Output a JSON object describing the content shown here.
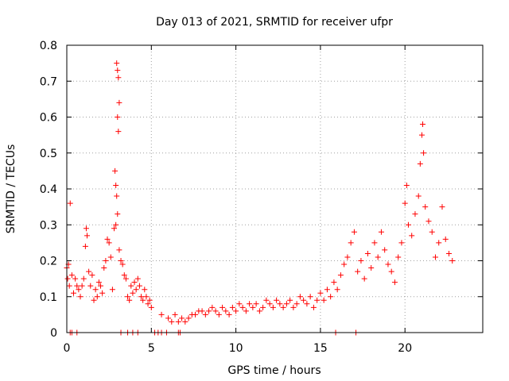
{
  "chart_data": {
    "type": "scatter",
    "title": "Day 013 of 2021, SRMTID for receiver ufpr",
    "xlabel": "GPS time / hours",
    "ylabel": "SRMTID / TECUs",
    "xlim": [
      0,
      24.6
    ],
    "ylim": [
      0,
      0.8
    ],
    "xticks": [
      0,
      5,
      10,
      15,
      20
    ],
    "xtick_labels": [
      "0",
      "5",
      "10",
      "15",
      "20"
    ],
    "yticks": [
      0,
      0.1,
      0.2,
      0.3,
      0.4,
      0.5,
      0.6,
      0.7,
      0.8
    ],
    "ytick_labels": [
      "0",
      "0.1",
      "0.2",
      "0.3",
      "0.4",
      "0.5",
      "0.6",
      "0.7",
      "0.8"
    ],
    "grid": true,
    "marker": "+",
    "color": "#ff0000",
    "series": [
      {
        "name": "SRMTID",
        "points": [
          [
            0.0,
            0.18
          ],
          [
            0.05,
            0.15
          ],
          [
            0.1,
            0.19
          ],
          [
            0.15,
            0.13
          ],
          [
            0.2,
            0.36
          ],
          [
            0.3,
            0.16
          ],
          [
            0.4,
            0.11
          ],
          [
            0.5,
            0.15
          ],
          [
            0.6,
            0.13
          ],
          [
            0.7,
            0.12
          ],
          [
            0.8,
            0.1
          ],
          [
            0.9,
            0.13
          ],
          [
            1.0,
            0.15
          ],
          [
            1.1,
            0.24
          ],
          [
            1.15,
            0.29
          ],
          [
            1.2,
            0.27
          ],
          [
            1.3,
            0.17
          ],
          [
            1.4,
            0.13
          ],
          [
            1.5,
            0.16
          ],
          [
            1.6,
            0.09
          ],
          [
            1.7,
            0.12
          ],
          [
            1.8,
            0.1
          ],
          [
            1.9,
            0.14
          ],
          [
            2.0,
            0.13
          ],
          [
            2.1,
            0.11
          ],
          [
            2.2,
            0.18
          ],
          [
            2.3,
            0.2
          ],
          [
            2.4,
            0.26
          ],
          [
            2.5,
            0.25
          ],
          [
            2.6,
            0.21
          ],
          [
            2.7,
            0.12
          ],
          [
            2.8,
            0.29
          ],
          [
            2.85,
            0.45
          ],
          [
            2.9,
            0.3
          ],
          [
            2.95,
            0.75
          ],
          [
            3.0,
            0.73
          ],
          [
            3.05,
            0.71
          ],
          [
            3.1,
            0.64
          ],
          [
            3.0,
            0.6
          ],
          [
            3.05,
            0.56
          ],
          [
            2.9,
            0.41
          ],
          [
            2.95,
            0.38
          ],
          [
            3.0,
            0.33
          ],
          [
            3.1,
            0.23
          ],
          [
            3.2,
            0.2
          ],
          [
            3.3,
            0.19
          ],
          [
            3.4,
            0.16
          ],
          [
            3.5,
            0.15
          ],
          [
            3.6,
            0.1
          ],
          [
            3.7,
            0.09
          ],
          [
            3.8,
            0.13
          ],
          [
            3.9,
            0.11
          ],
          [
            4.0,
            0.14
          ],
          [
            4.1,
            0.12
          ],
          [
            4.2,
            0.15
          ],
          [
            4.3,
            0.13
          ],
          [
            4.4,
            0.1
          ],
          [
            4.5,
            0.09
          ],
          [
            4.6,
            0.12
          ],
          [
            4.7,
            0.1
          ],
          [
            4.8,
            0.08
          ],
          [
            4.9,
            0.09
          ],
          [
            5.0,
            0.07
          ],
          [
            0.2,
            0.0
          ],
          [
            0.3,
            0.0
          ],
          [
            0.6,
            0.0
          ],
          [
            3.2,
            0.0
          ],
          [
            3.6,
            0.0
          ],
          [
            3.9,
            0.0
          ],
          [
            4.2,
            0.0
          ],
          [
            5.2,
            0.0
          ],
          [
            5.4,
            0.0
          ],
          [
            5.6,
            0.0
          ],
          [
            5.9,
            0.0
          ],
          [
            6.6,
            0.0
          ],
          [
            6.7,
            0.0
          ],
          [
            15.9,
            0.0
          ],
          [
            17.1,
            0.0
          ],
          [
            5.6,
            0.05
          ],
          [
            6.0,
            0.04
          ],
          [
            6.2,
            0.03
          ],
          [
            6.4,
            0.05
          ],
          [
            6.6,
            0.03
          ],
          [
            6.8,
            0.04
          ],
          [
            7.0,
            0.03
          ],
          [
            7.2,
            0.04
          ],
          [
            7.4,
            0.05
          ],
          [
            7.6,
            0.05
          ],
          [
            7.8,
            0.06
          ],
          [
            8.0,
            0.06
          ],
          [
            8.2,
            0.05
          ],
          [
            8.4,
            0.06
          ],
          [
            8.6,
            0.07
          ],
          [
            8.8,
            0.06
          ],
          [
            9.0,
            0.05
          ],
          [
            9.2,
            0.07
          ],
          [
            9.4,
            0.06
          ],
          [
            9.6,
            0.05
          ],
          [
            9.8,
            0.07
          ],
          [
            10.0,
            0.06
          ],
          [
            10.2,
            0.08
          ],
          [
            10.4,
            0.07
          ],
          [
            10.6,
            0.06
          ],
          [
            10.8,
            0.08
          ],
          [
            11.0,
            0.07
          ],
          [
            11.2,
            0.08
          ],
          [
            11.4,
            0.06
          ],
          [
            11.6,
            0.07
          ],
          [
            11.8,
            0.09
          ],
          [
            12.0,
            0.08
          ],
          [
            12.2,
            0.07
          ],
          [
            12.4,
            0.09
          ],
          [
            12.6,
            0.08
          ],
          [
            12.8,
            0.07
          ],
          [
            13.0,
            0.08
          ],
          [
            13.2,
            0.09
          ],
          [
            13.4,
            0.07
          ],
          [
            13.6,
            0.08
          ],
          [
            13.8,
            0.1
          ],
          [
            14.0,
            0.09
          ],
          [
            14.2,
            0.08
          ],
          [
            14.4,
            0.1
          ],
          [
            14.6,
            0.07
          ],
          [
            14.8,
            0.09
          ],
          [
            15.0,
            0.11
          ],
          [
            15.2,
            0.09
          ],
          [
            15.4,
            0.12
          ],
          [
            15.6,
            0.1
          ],
          [
            15.8,
            0.14
          ],
          [
            16.0,
            0.12
          ],
          [
            16.2,
            0.16
          ],
          [
            16.4,
            0.19
          ],
          [
            16.6,
            0.21
          ],
          [
            16.8,
            0.25
          ],
          [
            17.0,
            0.28
          ],
          [
            17.2,
            0.17
          ],
          [
            17.4,
            0.2
          ],
          [
            17.6,
            0.15
          ],
          [
            17.8,
            0.22
          ],
          [
            18.0,
            0.18
          ],
          [
            18.2,
            0.25
          ],
          [
            18.4,
            0.21
          ],
          [
            18.6,
            0.28
          ],
          [
            18.8,
            0.23
          ],
          [
            19.0,
            0.19
          ],
          [
            19.2,
            0.17
          ],
          [
            19.4,
            0.14
          ],
          [
            19.6,
            0.21
          ],
          [
            19.8,
            0.25
          ],
          [
            20.0,
            0.36
          ],
          [
            20.1,
            0.41
          ],
          [
            20.2,
            0.3
          ],
          [
            20.4,
            0.27
          ],
          [
            20.6,
            0.33
          ],
          [
            20.8,
            0.38
          ],
          [
            20.9,
            0.47
          ],
          [
            21.0,
            0.55
          ],
          [
            21.05,
            0.58
          ],
          [
            21.1,
            0.5
          ],
          [
            21.2,
            0.35
          ],
          [
            21.4,
            0.31
          ],
          [
            21.6,
            0.28
          ],
          [
            21.8,
            0.21
          ],
          [
            22.0,
            0.25
          ],
          [
            22.2,
            0.35
          ],
          [
            22.4,
            0.26
          ],
          [
            22.6,
            0.22
          ],
          [
            22.8,
            0.2
          ]
        ]
      }
    ]
  }
}
